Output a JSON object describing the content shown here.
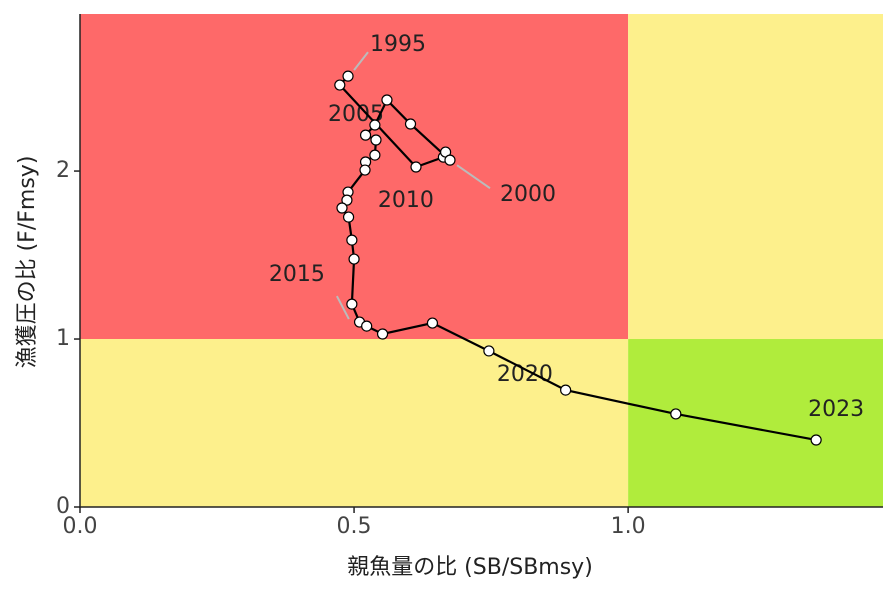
{
  "chart_data": {
    "type": "kobe",
    "x_label": "親魚量の比 (SB/SBmsy)",
    "y_label": "漁獲圧の比 (F/Fmsy)",
    "x": [
      0.489,
      0.474,
      0.613,
      0.663,
      0.667,
      0.675,
      0.603,
      0.56,
      0.538,
      0.521,
      0.54,
      0.538,
      0.521,
      0.52,
      0.489,
      0.487,
      0.478,
      0.49,
      0.496,
      0.5,
      0.496,
      0.51,
      0.523,
      0.552,
      0.643,
      0.746,
      0.886,
      1.087,
      1.343
    ],
    "y": [
      2.565,
      2.512,
      2.024,
      2.083,
      2.113,
      2.065,
      2.28,
      2.423,
      2.274,
      2.214,
      2.185,
      2.095,
      2.054,
      2.006,
      1.875,
      1.827,
      1.78,
      1.726,
      1.589,
      1.476,
      1.208,
      1.101,
      1.077,
      1.03,
      1.095,
      0.929,
      0.696,
      0.554,
      0.399
    ],
    "point_labels": [
      "1995",
      null,
      null,
      null,
      null,
      "2000",
      null,
      null,
      null,
      null,
      "2005",
      null,
      null,
      null,
      null,
      "2010",
      null,
      null,
      null,
      null,
      "2015",
      null,
      null,
      null,
      null,
      "2020",
      null,
      null,
      "2023"
    ],
    "line_color": "#000000",
    "marker_color": "#ffffff",
    "thresholds": {
      "x": 1,
      "y": 1
    },
    "zone_colors": {
      "overfished_overfishing": "#fe6969",
      "caution": "#fdf08c",
      "healthy": "#b0ec3c"
    },
    "xlim": [
      0,
      1.465
    ],
    "ylim": [
      0,
      2.935
    ],
    "xticks": [
      {
        "value": 0,
        "label": "0.0"
      },
      0.5,
      {
        "value": 1,
        "label": "1.0"
      }
    ],
    "yticks": [
      0,
      1,
      2
    ]
  }
}
